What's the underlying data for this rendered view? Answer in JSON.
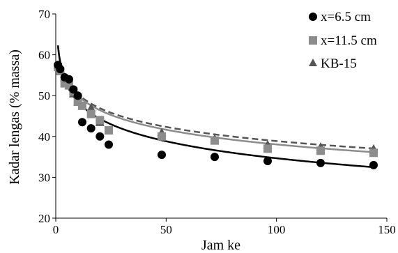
{
  "chart_data": {
    "type": "scatter",
    "xlabel": "Jam ke",
    "ylabel": "Kadar lengas (% massa)",
    "xlim": [
      0,
      150
    ],
    "ylim": [
      20,
      70
    ],
    "x_ticks": [
      0,
      50,
      100,
      150
    ],
    "y_ticks": [
      20,
      30,
      40,
      50,
      60,
      70
    ],
    "grid": false,
    "legend_position": "top-right",
    "series": [
      {
        "name": "x=6.5 cm",
        "marker": "circle",
        "color": "#000000",
        "trend_style": "solid",
        "trend_color": "#000000",
        "points": [
          [
            1,
            57.5
          ],
          [
            2,
            56.5
          ],
          [
            4,
            54.5
          ],
          [
            6,
            54
          ],
          [
            8,
            51.5
          ],
          [
            10,
            50
          ],
          [
            12,
            43.5
          ],
          [
            16,
            42
          ],
          [
            20,
            40
          ],
          [
            24,
            38
          ],
          [
            48,
            35.5
          ],
          [
            72,
            35
          ],
          [
            96,
            34
          ],
          [
            120,
            33.5
          ],
          [
            144,
            33
          ]
        ],
        "trend": {
          "a": 62.3,
          "b": -6.0
        }
      },
      {
        "name": "x=11.5 cm",
        "marker": "square",
        "color": "#8c8c8c",
        "trend_style": "solid",
        "trend_color": "#8c8c8c",
        "points": [
          [
            1,
            57
          ],
          [
            2,
            56
          ],
          [
            4,
            53
          ],
          [
            6,
            52.5
          ],
          [
            8,
            51
          ],
          [
            10,
            48.5
          ],
          [
            12,
            47.5
          ],
          [
            16,
            45.5
          ],
          [
            20,
            44
          ],
          [
            24,
            41.5
          ],
          [
            48,
            40
          ],
          [
            72,
            39
          ],
          [
            96,
            37
          ],
          [
            120,
            36.5
          ],
          [
            144,
            36
          ]
        ],
        "trend": {
          "a": 62.0,
          "b": -5.2
        }
      },
      {
        "name": "KB-15",
        "marker": "triangle",
        "color": "#555555",
        "trend_style": "dashed",
        "trend_color": "#555555",
        "points": [
          [
            1,
            57.5
          ],
          [
            2,
            56.5
          ],
          [
            4,
            54.5
          ],
          [
            6,
            52.5
          ],
          [
            8,
            50.5
          ],
          [
            10,
            48.5
          ],
          [
            12,
            47.5
          ],
          [
            16,
            47
          ],
          [
            20,
            43.5
          ],
          [
            24,
            41.5
          ],
          [
            48,
            41
          ],
          [
            72,
            39.5
          ],
          [
            96,
            38
          ],
          [
            120,
            37.5
          ],
          [
            144,
            37
          ]
        ],
        "trend": {
          "a": 61.9,
          "b": -5.0
        }
      }
    ]
  }
}
